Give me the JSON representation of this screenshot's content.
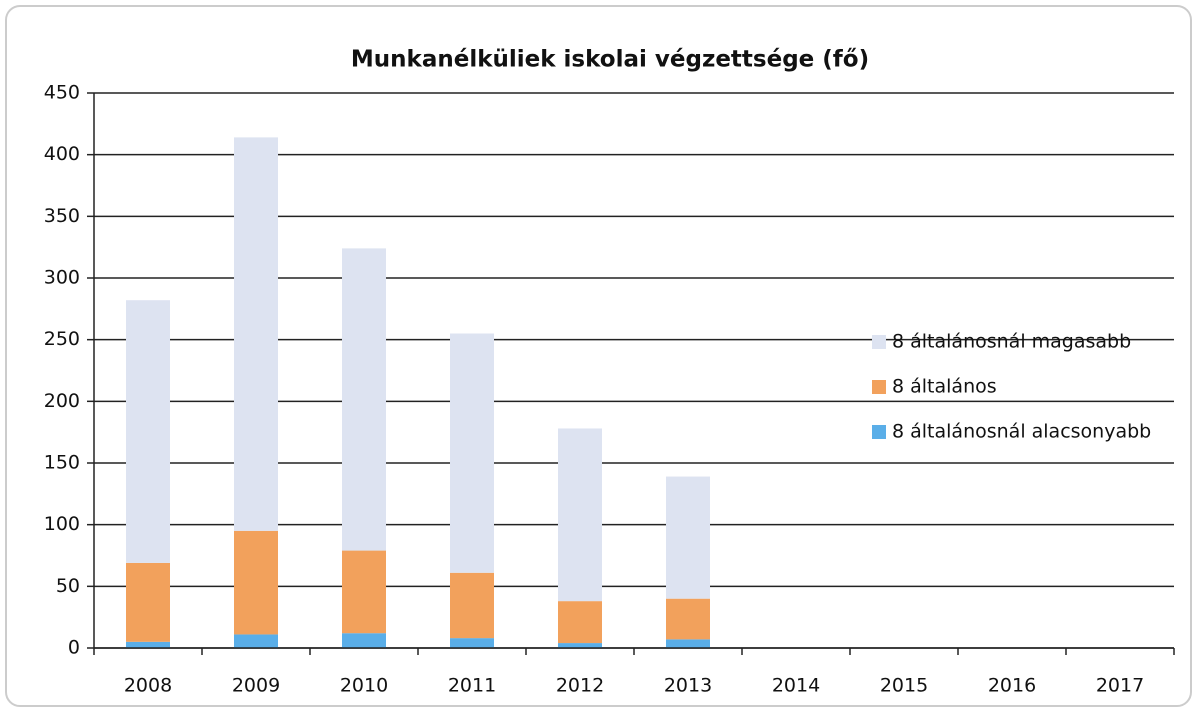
{
  "chart_data": {
    "type": "stacked_bar",
    "title": "Munkanélküliek iskolai végzettsége (fő)",
    "categories": [
      "2008",
      "2009",
      "2010",
      "2011",
      "2012",
      "2013",
      "2014",
      "2015",
      "2016",
      "2017"
    ],
    "series": [
      {
        "name": "8 általánosnál alacsonyabb",
        "color": "#5aaee8",
        "values": [
          5,
          11,
          12,
          8,
          4,
          7,
          null,
          null,
          null,
          null
        ]
      },
      {
        "name": "8 általános",
        "color": "#f2a15c",
        "values": [
          64,
          84,
          67,
          53,
          34,
          33,
          null,
          null,
          null,
          null
        ]
      },
      {
        "name": "8 általánosnál magasabb",
        "color": "#dde3f1",
        "values": [
          213,
          319,
          245,
          194,
          140,
          99,
          null,
          null,
          null,
          null
        ]
      }
    ],
    "ylim": [
      0,
      450
    ],
    "yticks": [
      0,
      50,
      100,
      150,
      200,
      250,
      300,
      350,
      400,
      450
    ],
    "grid": true,
    "legend": "right"
  }
}
